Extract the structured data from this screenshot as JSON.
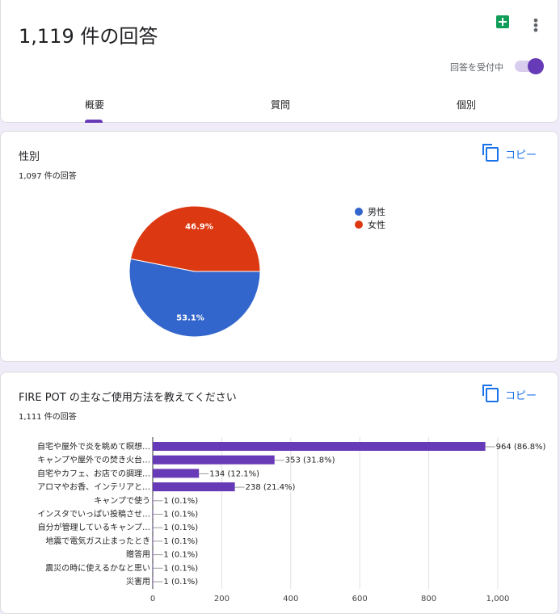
{
  "header": {
    "title": "1,119 件の回答",
    "accepting_label": "回答を受付中",
    "accepting": true,
    "tabs": [
      {
        "label": "概要",
        "active": true
      },
      {
        "label": "質問"
      },
      {
        "label": "個別"
      }
    ]
  },
  "copy_label": "コピー",
  "gender": {
    "title": "性別",
    "count": "1,097 件の回答",
    "chart_data": {
      "type": "pie",
      "legend": "right",
      "slices": [
        {
          "name": "男性",
          "value": 53.1,
          "label": "53.1%",
          "color": "#3366cc"
        },
        {
          "name": "女性",
          "value": 46.9,
          "label": "46.9%",
          "color": "#dc3912"
        }
      ]
    }
  },
  "usage": {
    "title": "FIRE POT の主なご使用方法を教えてください",
    "count": "1,111 件の回答",
    "chart_data": {
      "type": "bar",
      "orientation": "horizontal",
      "color": "#673ab7",
      "xlim": [
        0,
        1000
      ],
      "xticks": [
        "0",
        "200",
        "400",
        "600",
        "800",
        "1,000"
      ],
      "categories": [
        "自宅や屋外で炎を眺めて瞑想…",
        "キャンプや屋外での焚き火台…",
        "自宅やカフェ、お店での調理…",
        "アロマやお香、インテリアと…",
        "キャンプで使う",
        "インスタでいっぱい投稿させ…",
        "自分が管理しているキャンプ…",
        "地震で電気ガス止まったとき",
        "贈答用",
        "震災の時に使えるかなと思い",
        "災害用"
      ],
      "values": [
        964,
        353,
        134,
        238,
        1,
        1,
        1,
        1,
        1,
        1,
        1
      ],
      "labels": [
        "964 (86.8%)",
        "353 (31.8%)",
        "134 (12.1%)",
        "238 (21.4%)",
        "1 (0.1%)",
        "1 (0.1%)",
        "1 (0.1%)",
        "1 (0.1%)",
        "1 (0.1%)",
        "1 (0.1%)",
        "1 (0.1%)"
      ]
    }
  }
}
